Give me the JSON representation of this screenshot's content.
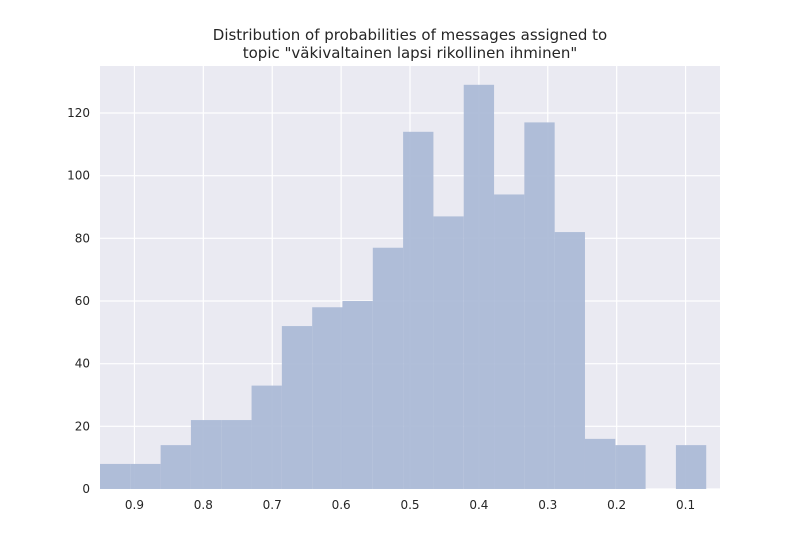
{
  "chart_data": {
    "type": "bar",
    "title_lines": [
      "Distribution of probabilities of messages assigned to",
      "topic \"väkivaltainen lapsi rikollinen ihminen\""
    ],
    "xlabel": "",
    "ylabel": "",
    "x_axis_reversed": true,
    "xlim": [
      0.95,
      0.05
    ],
    "ylim": [
      0,
      135
    ],
    "grid": true,
    "x_ticks": [
      0.9,
      0.8,
      0.7,
      0.6,
      0.5,
      0.4,
      0.3,
      0.2,
      0.1
    ],
    "x_tick_labels": [
      "0.9",
      "0.8",
      "0.7",
      "0.6",
      "0.5",
      "0.4",
      "0.3",
      "0.2",
      "0.1"
    ],
    "y_ticks": [
      0,
      20,
      40,
      60,
      80,
      100,
      120
    ],
    "y_tick_labels": [
      "0",
      "20",
      "40",
      "60",
      "80",
      "100",
      "120"
    ],
    "bin_edges": [
      0.95,
      0.906,
      0.862,
      0.818,
      0.774,
      0.73,
      0.686,
      0.642,
      0.598,
      0.554,
      0.51,
      0.466,
      0.422,
      0.378,
      0.334,
      0.29,
      0.246,
      0.202,
      0.158,
      0.114,
      0.07
    ],
    "values": [
      8,
      8,
      14,
      22,
      22,
      33,
      52,
      58,
      60,
      77,
      114,
      87,
      129,
      94,
      117,
      82,
      16,
      14,
      0,
      14
    ],
    "bar_color": "#a9b8d6",
    "background_color": "#eaeaf2",
    "grid_color": "#ffffff"
  }
}
